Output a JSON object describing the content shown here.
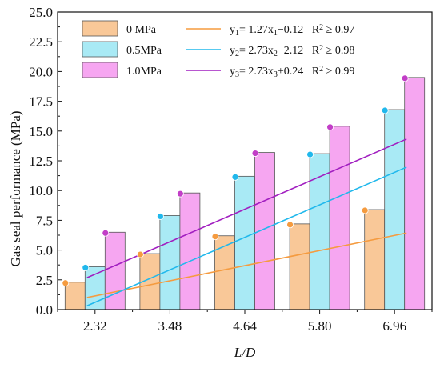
{
  "chart_data": {
    "type": "bar",
    "xlabel": "L/D",
    "ylabel": "Gas seal performance (MPa)",
    "categories": [
      "2.32",
      "3.48",
      "4.64",
      "5.80",
      "6.96"
    ],
    "ylim": [
      0,
      25
    ],
    "yticks": [
      "0.0",
      "2.5",
      "5.0",
      "7.5",
      "10.0",
      "12.5",
      "15.0",
      "17.5",
      "20.0",
      "22.5",
      "25.0"
    ],
    "series": [
      {
        "name": "0  MPa",
        "values": [
          2.3,
          4.7,
          6.2,
          7.2,
          8.4
        ],
        "color": "#f9c898",
        "marker": "#f59b3f"
      },
      {
        "name": "0.5MPa",
        "values": [
          3.6,
          7.9,
          11.2,
          13.1,
          16.8
        ],
        "color": "#a9eaf5",
        "marker": "#20b8ec"
      },
      {
        "name": "1.0MPa",
        "values": [
          6.5,
          9.8,
          13.2,
          15.4,
          19.5
        ],
        "color": "#f6a6f1",
        "marker": "#c23ec7"
      }
    ],
    "fits": [
      {
        "color": "#f59b3f",
        "slope": 1.27,
        "intercept": -0.12,
        "eq_y": "y",
        "eq_sub": "1",
        "eq_mid": "= 1.27x",
        "eq_sub2": "1",
        "eq_end": "−0.12",
        "r2": "R",
        "r2_sup": "2",
        "r2_end": " ≥ 0.97"
      },
      {
        "color": "#20b8ec",
        "slope": 2.73,
        "intercept": -2.12,
        "eq_y": "y",
        "eq_sub": "2",
        "eq_mid": "= 2.73x",
        "eq_sub2": "2",
        "eq_end": "−2.12",
        "r2": "R",
        "r2_sup": "2",
        "r2_end": " ≥ 0.98"
      },
      {
        "color": "#a11ec0",
        "slope": 2.73,
        "intercept": 0.24,
        "eq_y": "y",
        "eq_sub": "3",
        "eq_mid": "= 2.73x",
        "eq_sub2": "3",
        "eq_end": "+0.24",
        "r2": "R",
        "r2_sup": "2",
        "r2_end": " ≥ 0.99"
      }
    ],
    "legend_position": "top-left",
    "grid": false
  }
}
